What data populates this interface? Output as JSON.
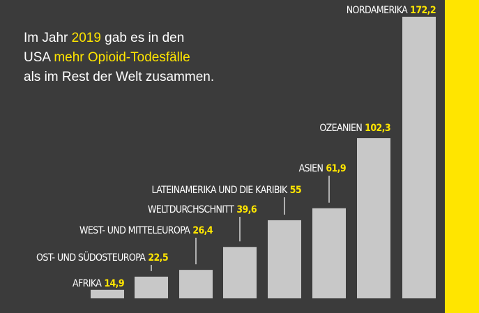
{
  "chart_data": {
    "type": "bar",
    "categories": [
      "AFRIKA",
      "OST- UND SÜDOSTEUROPA",
      "WEST- UND MITTELEUROPA",
      "WELTDURCHSCHNITT",
      "LATEINAMERIKA UND DIE KARIBIK",
      "ASIEN",
      "OZEANIEN",
      "NORDAMERIKA"
    ],
    "values": [
      14.9,
      22.5,
      26.4,
      39.6,
      55,
      61.9,
      102.3,
      172.2
    ],
    "value_labels": [
      "14,9",
      "22,5",
      "26,4",
      "39,6",
      "55",
      "61,9",
      "102,3",
      "172,2"
    ],
    "color": "#c8c8c8",
    "ylim": [
      10,
      172.2
    ],
    "annotation": [
      [
        {
          "text": "Im Jahr ",
          "highlight": false
        },
        {
          "text": "2019",
          "highlight": true
        },
        {
          "text": " gab es in den",
          "highlight": false
        }
      ],
      [
        {
          "text": "USA ",
          "highlight": false
        },
        {
          "text": "mehr Opioid-Todesfälle",
          "highlight": true
        }
      ],
      [
        {
          "text": "als im Rest der Welt zusammen.",
          "highlight": false
        }
      ]
    ]
  }
}
